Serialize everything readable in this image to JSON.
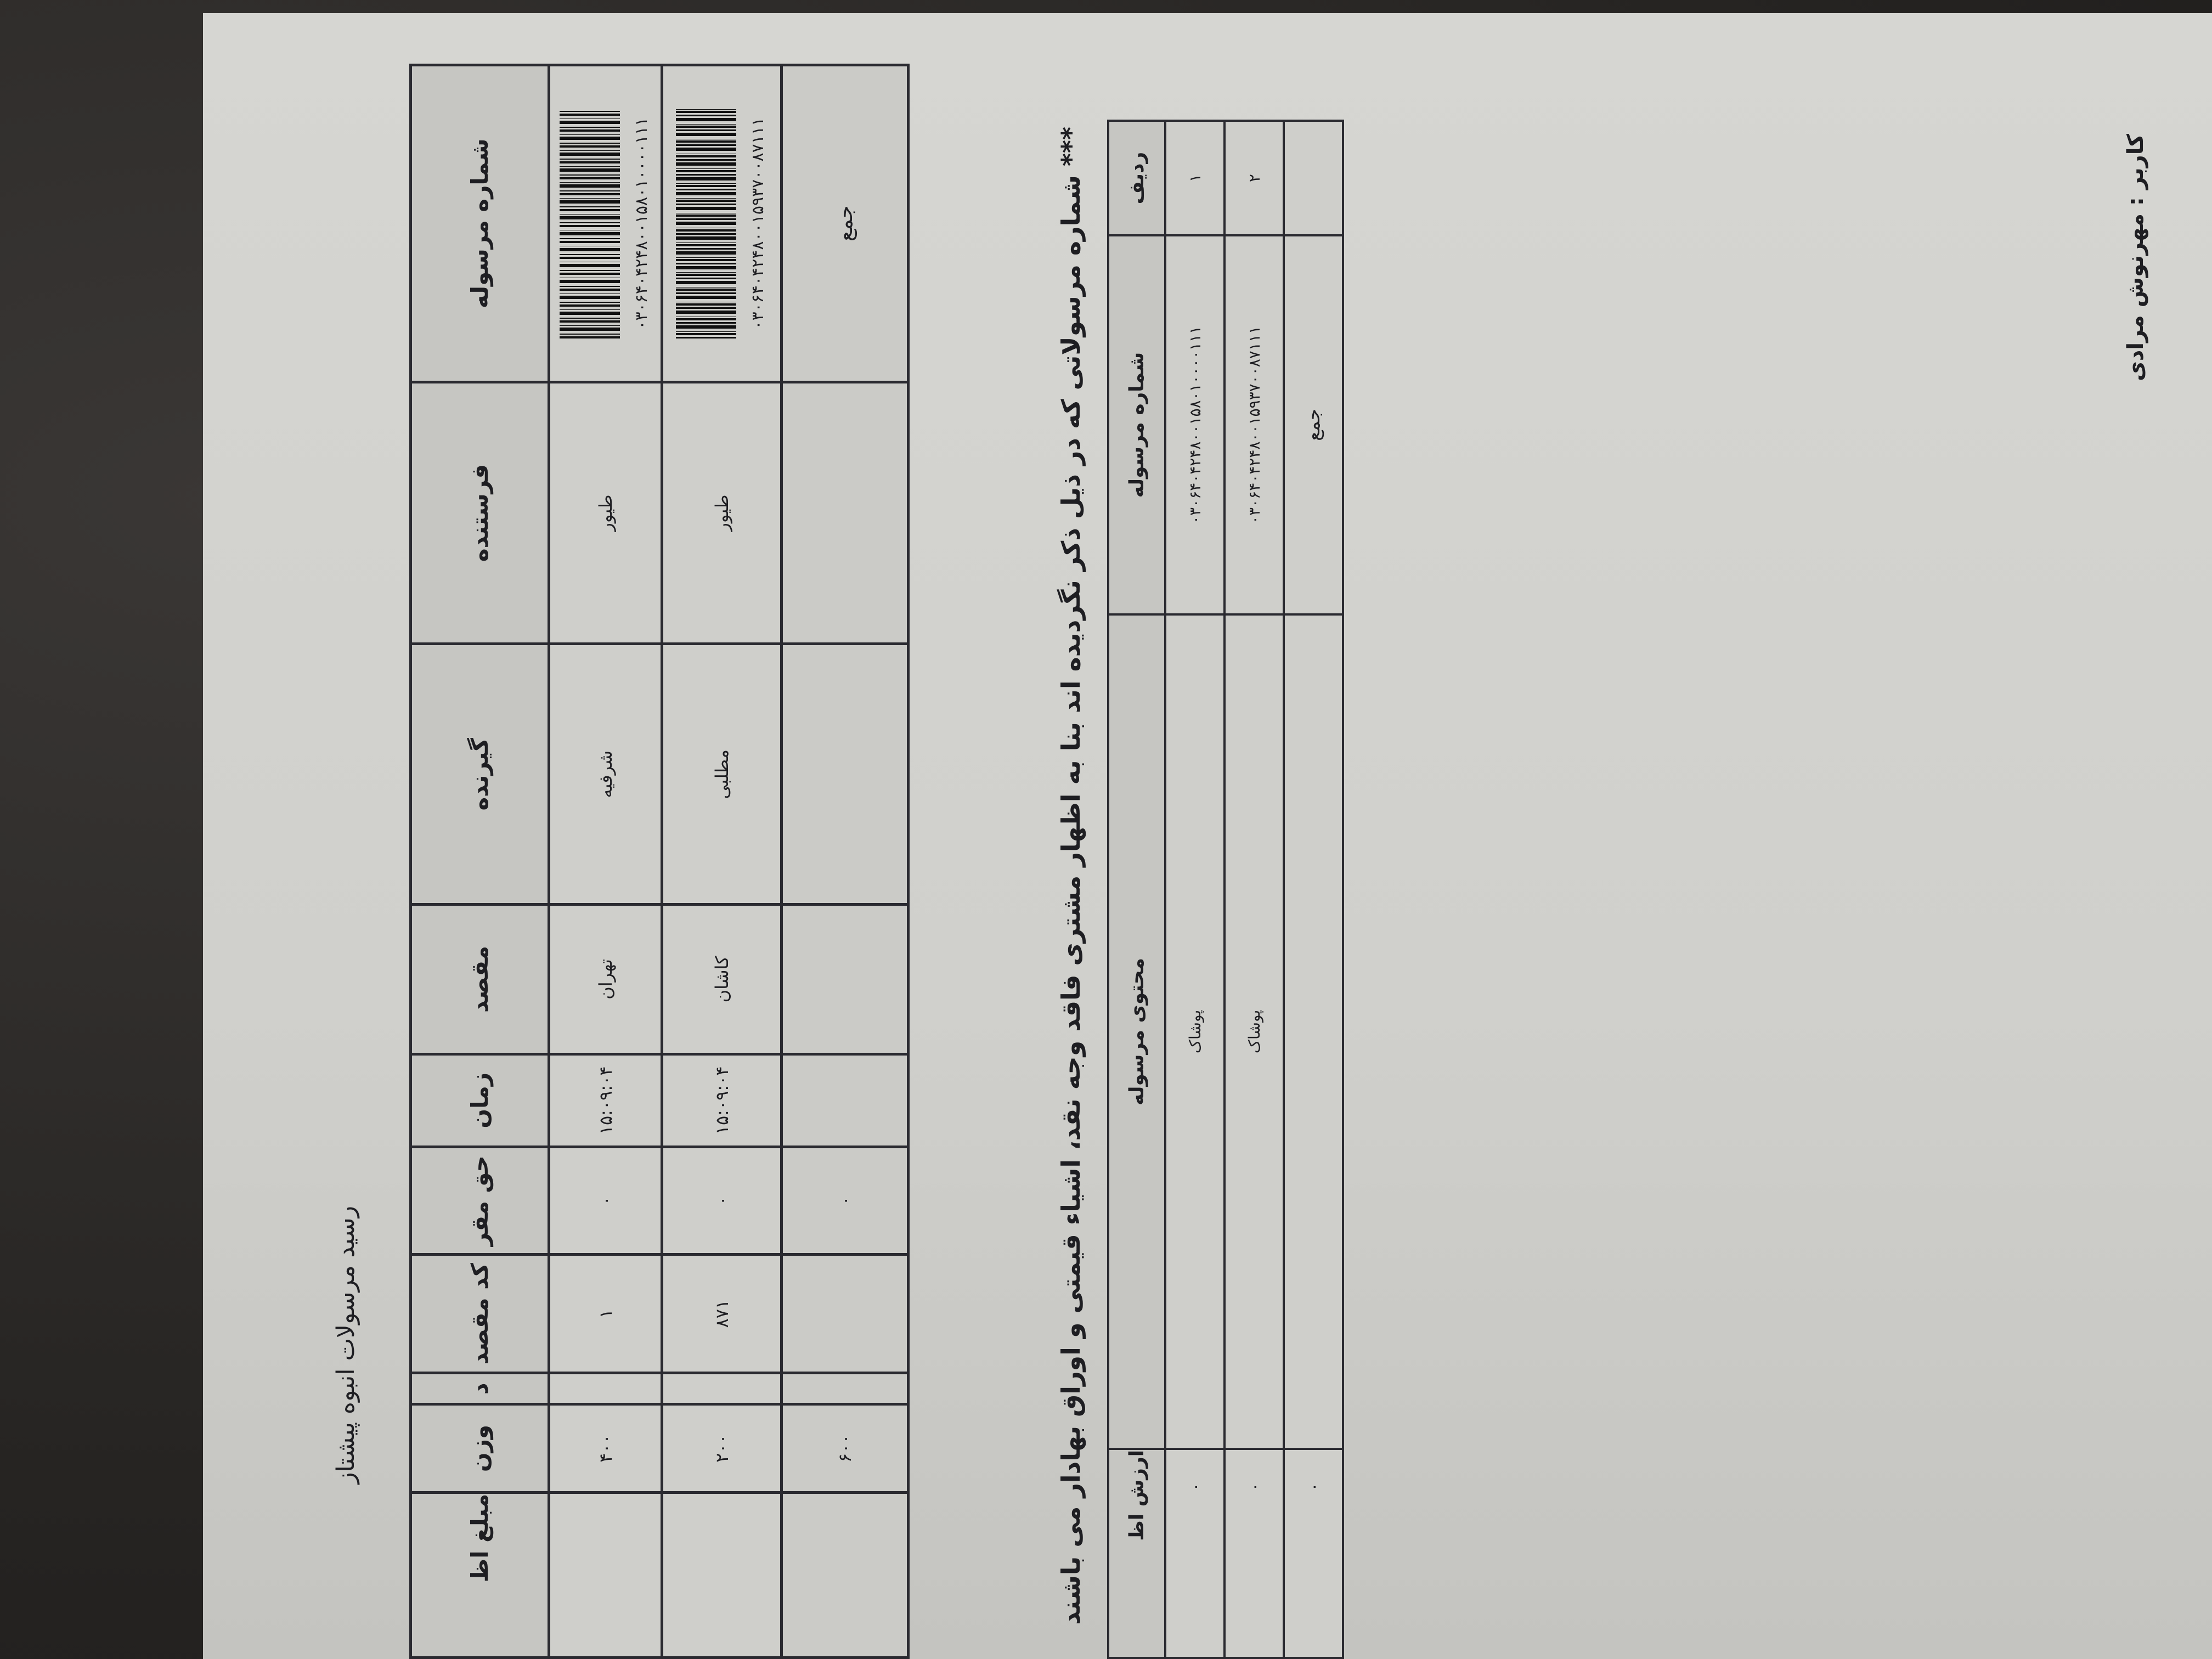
{
  "title": "رسید مرسولات انبوه پیشتاز",
  "main_table": {
    "headers": [
      "شماره مرسوله",
      "فرستنده",
      "گیرنده",
      "مقصد",
      "زمان",
      "حق مقر",
      "کد مقصد",
      "د",
      "وزن",
      "مبلغ اظ"
    ],
    "rows": [
      {
        "tracking": "۰۳۰۶۴۰۴۲۴۸۰۰۱۵۸۰۱۰۰۰۰۱۱۱",
        "sender": "طیور",
        "receiver": "شرفیه",
        "destination": "تهران",
        "time": "۱۵:۰۹:۰۴",
        "fee": "۰",
        "dest_code": "۱",
        "d": "",
        "weight": "۴۰۰",
        "amount": ""
      },
      {
        "tracking": "۰۳۰۶۴۰۴۲۴۸۰۰۱۵۹۳۷۰۰۸۷۱۱۱",
        "sender": "طیور",
        "receiver": "مطلبی",
        "destination": "کاشان",
        "time": "۱۵:۰۹:۰۴",
        "fee": "۰",
        "dest_code": "۸۷۱",
        "d": "",
        "weight": "۲۰۰",
        "amount": ""
      }
    ],
    "total": {
      "label": "جمع",
      "fee": "۰",
      "weight": "۶۰۰"
    }
  },
  "notice": "*** شماره مرسولاتی که در ذیل ذکر نگردیده اند بنا به اظهار مشتری فاقد وجه نقد، اشیاء قیمتی و اوراق بهادار می باشند",
  "second_table": {
    "headers": [
      "ردیف",
      "شماره مرسوله",
      "محتوی مرسوله",
      "ارزش اظ"
    ],
    "rows": [
      {
        "index": "۱",
        "tracking": "۰۳۰۶۴۰۴۲۴۸۰۰۱۵۸۰۱۰۰۰۰۱۱۱",
        "content": "پوشاک",
        "value": "۰"
      },
      {
        "index": "۲",
        "tracking": "۰۳۰۶۴۰۴۲۴۸۰۰۱۵۹۳۷۰۰۸۷۱۱۱",
        "content": "پوشاک",
        "value": "۰"
      }
    ],
    "total": {
      "label": "جمع",
      "value": "۰"
    }
  },
  "user_label": "کاربر : مهرنوش مرادی"
}
